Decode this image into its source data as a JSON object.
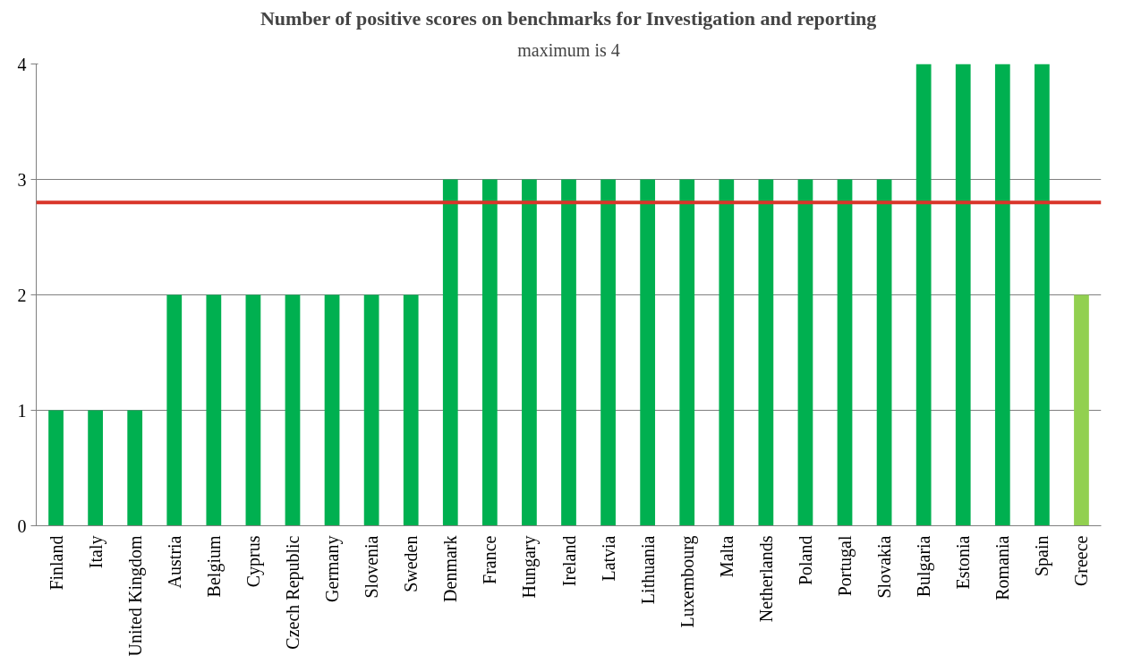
{
  "chart_data": {
    "type": "bar",
    "title": "Number of positive scores on benchmarks for Investigation and reporting",
    "subtitle": "maximum is 4",
    "categories": [
      "Finland",
      "Italy",
      "United Kingdom",
      "Austria",
      "Belgium",
      "Cyprus",
      "Czech Republic",
      "Germany",
      "Slovenia",
      "Sweden",
      "Denmark",
      "France",
      "Hungary",
      "Ireland",
      "Latvia",
      "Lithuania",
      "Luxembourg",
      "Malta",
      "Netherlands",
      "Poland",
      "Portugal",
      "Slovakia",
      "Bulgaria",
      "Estonia",
      "Romania",
      "Spain",
      "Greece"
    ],
    "values": [
      1,
      1,
      1,
      2,
      2,
      2,
      2,
      2,
      2,
      2,
      3,
      3,
      3,
      3,
      3,
      3,
      3,
      3,
      3,
      3,
      3,
      3,
      4,
      4,
      4,
      4,
      2
    ],
    "colors": [
      "#00b050",
      "#00b050",
      "#00b050",
      "#00b050",
      "#00b050",
      "#00b050",
      "#00b050",
      "#00b050",
      "#00b050",
      "#00b050",
      "#00b050",
      "#00b050",
      "#00b050",
      "#00b050",
      "#00b050",
      "#00b050",
      "#00b050",
      "#00b050",
      "#00b050",
      "#00b050",
      "#00b050",
      "#00b050",
      "#00b050",
      "#00b050",
      "#00b050",
      "#00b050",
      "#92d050"
    ],
    "ylim": [
      0,
      4
    ],
    "yticks": [
      0,
      1,
      2,
      3,
      4
    ],
    "grid": "y",
    "ref_lines": [
      {
        "axis": "y",
        "value": 2.8,
        "color": "#d9352a"
      }
    ]
  }
}
